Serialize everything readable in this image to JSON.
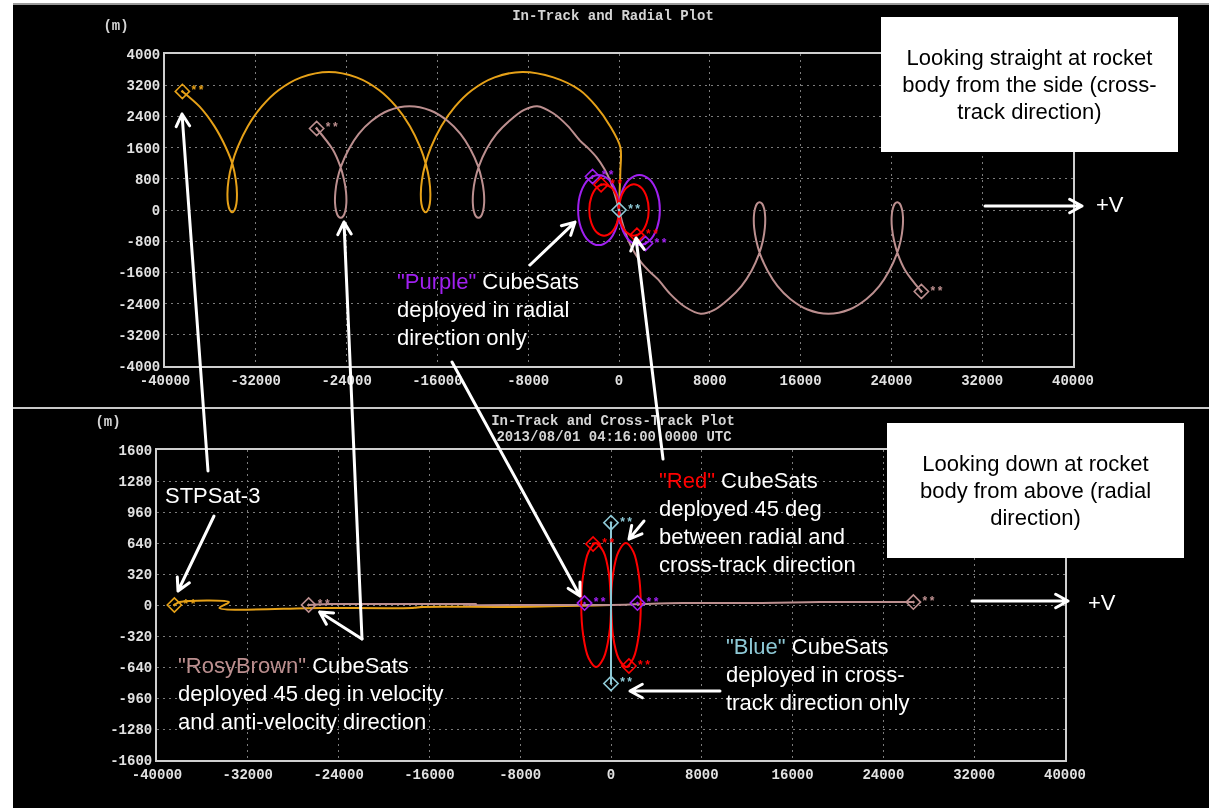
{
  "chart_data": [
    {
      "type": "line",
      "title": "In-Track and Radial Plot",
      "ylabel": "(m)",
      "xlim": [
        -40000,
        40000
      ],
      "xticks": [
        -40000,
        -32000,
        -24000,
        -16000,
        -8000,
        0,
        8000,
        16000,
        24000,
        32000,
        40000
      ],
      "ylim": [
        -4000,
        4000
      ],
      "yticks": [
        -4000,
        -3200,
        -2400,
        -1600,
        -800,
        0,
        800,
        1600,
        2400,
        3200,
        4000
      ],
      "grid": true,
      "series": [
        {
          "color": "#e6a118",
          "x": [
            0,
            60,
            120,
            120,
            -780,
            -1990,
            -3440,
            -5780,
            -8520,
            -10960,
            -12960,
            -14450,
            -15660,
            -16560,
            -17070,
            -17360,
            -17460,
            -17410,
            -17250,
            -17040,
            -16830,
            -16670,
            -16620,
            -16720,
            -17010,
            -17520,
            -18420,
            -19630,
            -21120,
            -23120,
            -25560,
            -28000,
            -30000,
            -31490,
            -32700,
            -33600,
            -34110,
            -34400,
            -34500,
            -34450,
            -34290,
            -34080,
            -33870,
            -33710,
            -33660,
            -33760,
            -34050,
            -34650,
            -35650,
            -36950,
            -38470
          ],
          "values": [
            0,
            500,
            1000,
            1610,
            2150,
            2650,
            3070,
            3400,
            3540,
            3400,
            3070,
            2650,
            2150,
            1610,
            1170,
            770,
            420,
            160,
            0,
            -60,
            0,
            160,
            420,
            770,
            1170,
            1610,
            2150,
            2650,
            3070,
            3400,
            3540,
            3400,
            3070,
            2650,
            2150,
            1610,
            1170,
            770,
            420,
            160,
            0,
            -60,
            0,
            160,
            420,
            770,
            1170,
            1610,
            2150,
            2650,
            3040
          ]
        },
        {
          "color": "#bc8f8f",
          "x": [
            -26640,
            -25220,
            -24570,
            -24230,
            -24050,
            -24020,
            -24120,
            -24300,
            -24520,
            -24740,
            -24920,
            -25020,
            -24990,
            -24820,
            -24470,
            -23820,
            -22930,
            -21810,
            -20300,
            -18450,
            -16610,
            -15090,
            -13970,
            -13080,
            -12430,
            -12090,
            -11910,
            -11880,
            -11980,
            -12160,
            -12380,
            -12610,
            -12790,
            -12880,
            -12850,
            -12680,
            -12330,
            -11690,
            -10790,
            -9670,
            -8400,
            -7200,
            -5800,
            -4500,
            -3440,
            -2700,
            -1970,
            -1300,
            -790,
            -350,
            0,
            350,
            790,
            1300,
            1970,
            2700,
            3440,
            4500,
            5800,
            7200,
            8400,
            9670,
            10790,
            11690,
            12330,
            12680,
            12850,
            12880,
            12790,
            12610,
            12380,
            12160,
            11980,
            11880,
            11910,
            12090,
            12430,
            13080,
            13970,
            15090,
            16610,
            18450,
            20300,
            21810,
            22930,
            23820,
            24470,
            24820,
            24990,
            25020,
            24920,
            24740,
            24520,
            24300,
            24120,
            24020,
            24050,
            24230,
            24570,
            25220,
            26640
          ],
          "values": [
            2090,
            1550,
            1130,
            780,
            460,
            180,
            -30,
            -160,
            -200,
            -160,
            -30,
            180,
            460,
            780,
            1130,
            1550,
            1950,
            2280,
            2550,
            2660,
            2550,
            2280,
            1950,
            1550,
            1130,
            780,
            460,
            180,
            -30,
            -160,
            -200,
            -160,
            -30,
            180,
            460,
            780,
            1130,
            1550,
            1950,
            2280,
            2560,
            2660,
            2480,
            2150,
            1780,
            1580,
            1350,
            1060,
            760,
            380,
            0,
            -380,
            -760,
            -1060,
            -1350,
            -1580,
            -1780,
            -2150,
            -2480,
            -2660,
            -2560,
            -2280,
            -1950,
            -1550,
            -1130,
            -780,
            -460,
            -180,
            30,
            160,
            200,
            160,
            30,
            -180,
            -460,
            -780,
            -1130,
            -1550,
            -1950,
            -2280,
            -2550,
            -2660,
            -2550,
            -2280,
            -1950,
            -1550,
            -1130,
            -780,
            -460,
            -180,
            30,
            160,
            200,
            160,
            30,
            -180,
            -460,
            -780,
            -1130,
            -1550,
            -2090
          ]
        },
        {
          "color": "#a020f0",
          "x": [
            -2330,
            -1800,
            -900,
            -240,
            0,
            -240,
            -900,
            -1800,
            -2700,
            -3360,
            -3600,
            -3360,
            -2700,
            -1800,
            -900,
            -240,
            0,
            240,
            900,
            1800,
            2700,
            3360,
            3600,
            3360,
            2700,
            1800,
            900,
            240,
            0,
            240,
            900,
            1800,
            2330
          ],
          "values": [
            860,
            900,
            780,
            450,
            0,
            -450,
            -780,
            -900,
            -780,
            -450,
            0,
            450,
            780,
            900,
            780,
            450,
            0,
            -450,
            -780,
            -900,
            -780,
            -450,
            0,
            450,
            780,
            900,
            780,
            450,
            0,
            -450,
            -780,
            -900,
            -860
          ]
        },
        {
          "color": "#ff0000",
          "x": [
            -1580,
            -1310,
            -660,
            -180,
            0,
            -180,
            -660,
            -1310,
            -1970,
            -2440,
            -2620,
            -2440,
            -1970,
            -1310,
            -660,
            -180,
            0,
            180,
            660,
            1310,
            1970,
            2440,
            2620,
            2440,
            1970,
            1310,
            660,
            180,
            0,
            180,
            660,
            1310,
            1580
          ],
          "values": [
            650,
            660,
            570,
            330,
            0,
            -330,
            -570,
            -660,
            -570,
            -330,
            0,
            330,
            570,
            660,
            570,
            330,
            0,
            -330,
            -570,
            -660,
            -570,
            -330,
            0,
            330,
            570,
            660,
            570,
            330,
            0,
            -330,
            -570,
            -660,
            -650
          ]
        },
        {
          "type": "scatter",
          "marker": "diamond",
          "x": [
            -38470,
            -26640,
            26640,
            -2330,
            2330,
            -1580,
            1580,
            0
          ],
          "values": [
            3040,
            2090,
            -2090,
            860,
            -860,
            650,
            -650,
            0
          ],
          "colors": [
            "#e6a118",
            "#bc8f8f",
            "#bc8f8f",
            "#a020f0",
            "#a020f0",
            "#ff0000",
            "#ff0000",
            "#8ec9d6"
          ],
          "value_labels": [
            "**",
            "**",
            "**",
            "**",
            "**",
            "**",
            "**",
            "**"
          ]
        }
      ],
      "annotations": [
        "Looking straight at rocket body from the side (cross-track direction)",
        {
          "text": "\"Purple\" CubeSats deployed in radial direction only",
          "x": -3880,
          "y": -310
        },
        "+V"
      ]
    },
    {
      "type": "line",
      "title": "In-Track and Cross-Track Plot",
      "subtitle": "2013/08/01 04:16:00.0000 UTC",
      "ylabel": "(m)",
      "xlim": [
        -40000,
        40000
      ],
      "xticks": [
        -40000,
        -32000,
        -24000,
        -16000,
        -8000,
        0,
        8000,
        16000,
        24000,
        32000,
        40000
      ],
      "ylim": [
        -1600,
        1600
      ],
      "yticks": [
        -1600,
        -1280,
        -960,
        -640,
        -320,
        0,
        320,
        640,
        960,
        1280,
        1600
      ],
      "grid": true,
      "series": [
        {
          "color": "#e6a118",
          "x": [
            0,
            -8520,
            -16560,
            -17460,
            -16620,
            -17520,
            -25560,
            -34500,
            -33660,
            -38000,
            -38470
          ],
          "values": [
            0,
            -20,
            -20,
            -30,
            -20,
            -30,
            -30,
            -30,
            30,
            30,
            0
          ]
        },
        {
          "color": "#bc8f8f",
          "x": [
            -26640,
            -24570,
            -24020,
            -25020,
            -18450,
            -12430,
            -11880,
            -12880,
            -6310,
            0,
            6310,
            12880,
            11880,
            12430,
            18450,
            25020,
            24020,
            24570,
            26640
          ],
          "values": [
            0,
            10,
            10,
            10,
            10,
            10,
            10,
            0,
            0,
            0,
            20,
            20,
            20,
            20,
            30,
            30,
            30,
            30,
            30
          ]
        },
        {
          "color": "#ff0000",
          "x": [
            -1580,
            -1310,
            -660,
            -180,
            0,
            -180,
            -660,
            -1310,
            -1970,
            -2440,
            -2620,
            -2440,
            -1970,
            -1310,
            -660,
            -180,
            0,
            180,
            660,
            1310,
            1970,
            2440,
            2620,
            2440,
            1970,
            1310,
            660,
            180,
            0,
            180,
            660,
            1310,
            1580
          ],
          "values": [
            630,
            640,
            550,
            320,
            0,
            -320,
            -550,
            -640,
            -550,
            -320,
            0,
            320,
            550,
            640,
            550,
            320,
            0,
            -320,
            -550,
            -640,
            -550,
            -320,
            0,
            320,
            550,
            640,
            550,
            320,
            0,
            -320,
            -550,
            -640,
            -630
          ]
        },
        {
          "color": "#8ec9d6",
          "x": [
            0,
            0
          ],
          "values": [
            -810,
            850
          ]
        },
        {
          "type": "scatter",
          "marker": "diamond",
          "x": [
            -38470,
            -26640,
            26640,
            -2330,
            2330,
            -1580,
            1580,
            0,
            0
          ],
          "values": [
            0,
            0,
            30,
            20,
            20,
            630,
            -630,
            850,
            -810
          ],
          "colors": [
            "#e6a118",
            "#bc8f8f",
            "#bc8f8f",
            "#a020f0",
            "#a020f0",
            "#ff0000",
            "#ff0000",
            "#8ec9d6",
            "#8ec9d6"
          ],
          "value_labels": [
            "**",
            "**",
            "**",
            "**",
            "**",
            "**",
            "**",
            "**",
            "**"
          ]
        }
      ],
      "annotations": [
        "Looking down at rocket body from above (radial direction)",
        "+V",
        {
          "text": "\"Red\" CubeSats deployed 45 deg between radial and cross-track direction",
          "x": 1590,
          "y": 680
        },
        "\"Blue\" CubeSats deployed in cross-track direction only",
        "STPSat-3",
        {
          "text": "\"RosyBrown\" CubeSats deployed 45 deg in velocity and anti-velocity direction",
          "x": -26640,
          "y": 0
        }
      ]
    }
  ]
}
